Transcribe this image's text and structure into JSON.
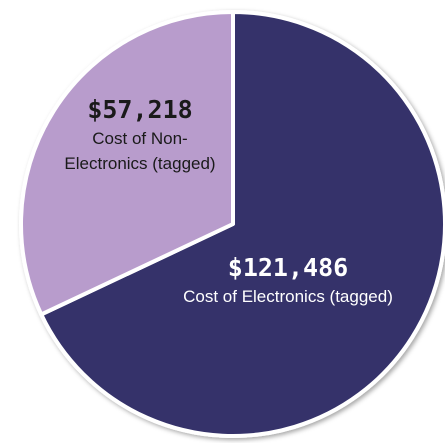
{
  "chart_data": {
    "type": "pie",
    "categories": [
      "Cost of Electronics (tagged)",
      "Cost of Non-Electronics (tagged)"
    ],
    "values": [
      121486,
      57218
    ],
    "value_labels": [
      "$121,486",
      "$57,218"
    ],
    "colors": [
      "#35336a",
      "#b89ccc"
    ]
  }
}
